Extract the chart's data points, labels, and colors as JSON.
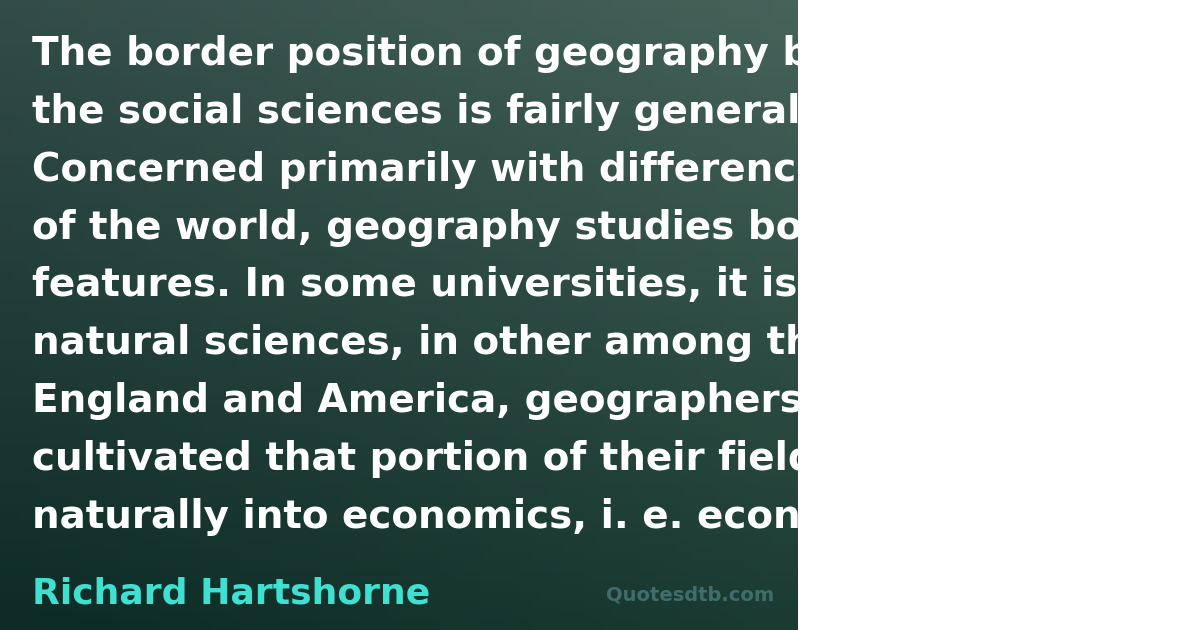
{
  "quote_text": "The border position of geography between the natural and the social sciences is fairly generally recognized. Concerned primarily with differences in the different areas of the world, geography studies both natural and cultural features. In some universities, it is included among the natural sciences, in other among the social scientists. In England and America, geographers have particularly cultivated that portion of their field which leads naturally into economics, i. e. economic geography.",
  "author": "Richard Hartshorne",
  "watermark": "Quotesdtb.com",
  "quote_color": "#ffffff",
  "author_color": "#40e0d0",
  "watermark_color": "#4a7a7a",
  "bg_overlay_color": "#1a3a3a",
  "bg_overlay_alpha": 0.35,
  "quote_fontsize": 28,
  "author_fontsize": 26,
  "watermark_fontsize": 14,
  "fig_width": 12.0,
  "fig_height": 6.3
}
